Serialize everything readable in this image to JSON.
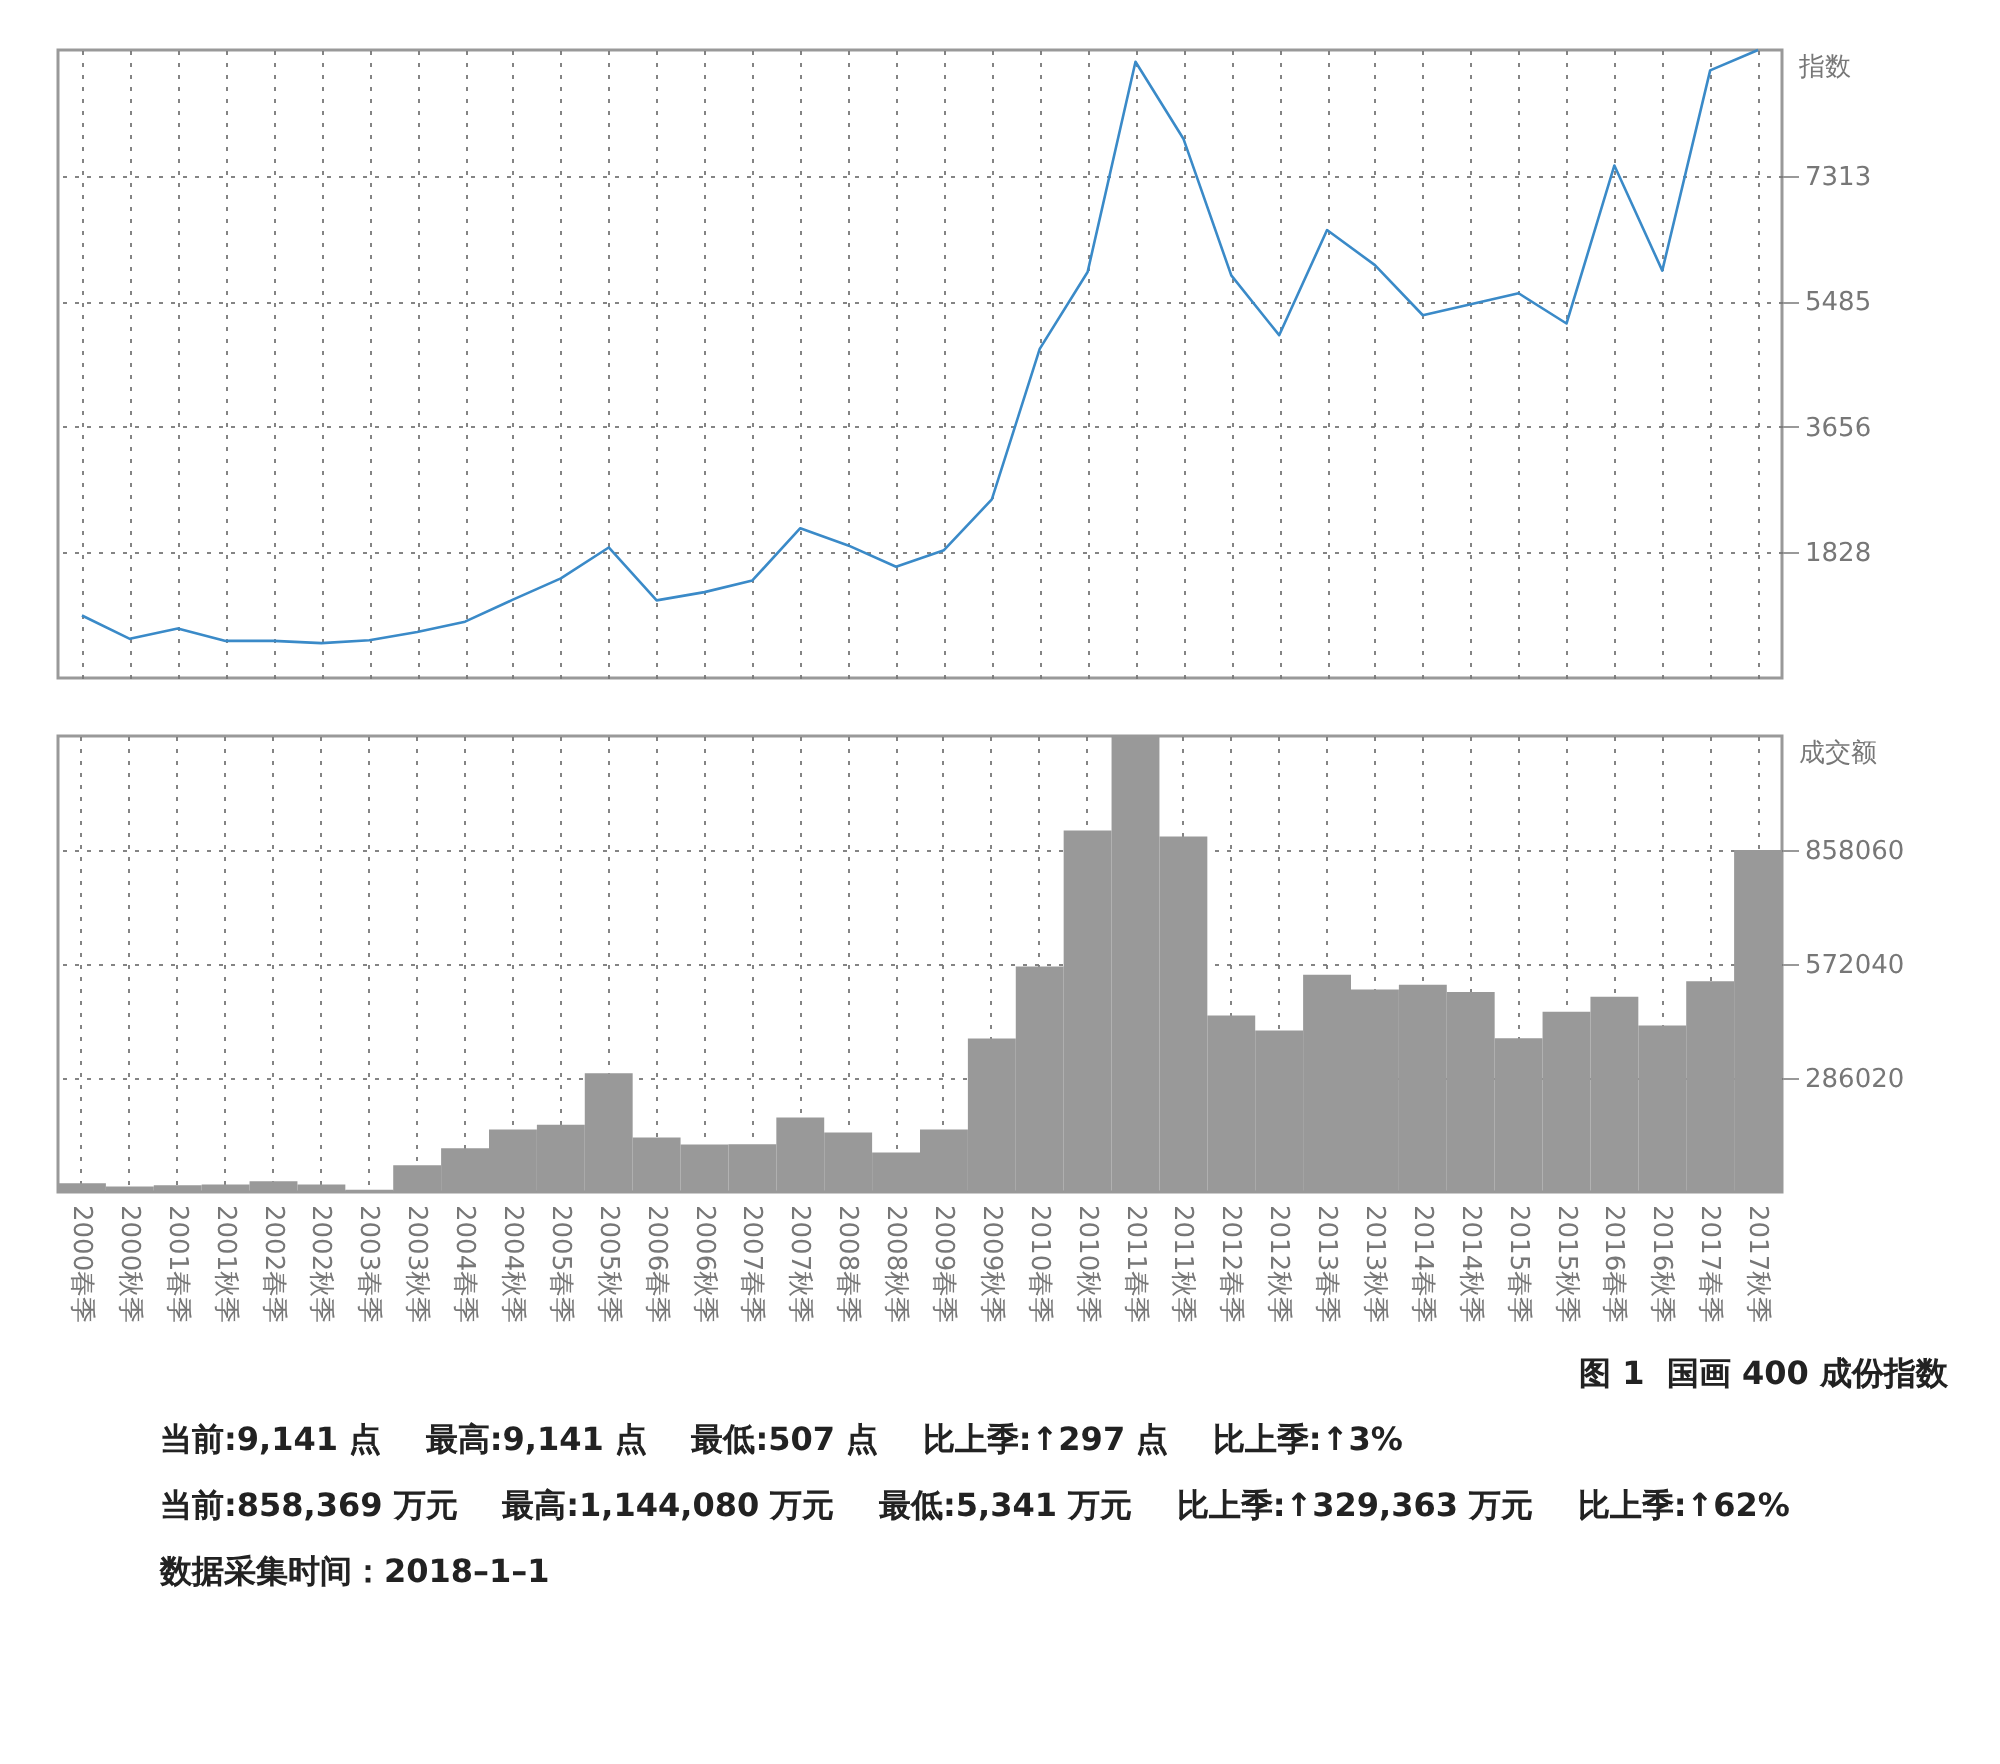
{
  "chart_data": [
    {
      "type": "line",
      "categories": [
        null,
        null,
        null,
        null,
        null,
        null,
        null,
        null,
        null,
        null,
        null,
        null,
        null,
        null,
        null,
        null,
        null,
        null,
        null,
        null,
        null,
        null,
        null,
        null,
        null,
        null,
        null,
        null,
        null,
        null,
        null,
        null,
        null,
        null,
        null,
        null
      ],
      "values": [
        910,
        570,
        720,
        540,
        540,
        507,
        550,
        670,
        820,
        1140,
        1450,
        1900,
        1130,
        1250,
        1420,
        2180,
        1930,
        1620,
        1860,
        2600,
        4790,
        5910,
        8970,
        7850,
        5860,
        4990,
        6520,
        6010,
        5280,
        5440,
        5600,
        5160,
        7460,
        5930,
        8844,
        9141
      ],
      "color": "#3a8ac8",
      "ylabel": "指数",
      "ylim": [
        0,
        9141
      ],
      "yticks": [
        1828,
        3656,
        5485,
        7313
      ],
      "grid": true,
      "tick_labels": "y"
    },
    {
      "type": "bar",
      "categories": [
        "2000春季",
        "2000秋季",
        "2001春季",
        "2001秋季",
        "2002春季",
        "2002秋季",
        "2003春季",
        "2003秋季",
        "2004春季",
        "2004秋季",
        "2005春季",
        "2005秋季",
        "2006春季",
        "2006秋季",
        "2007春季",
        "2007秋季",
        "2008春季",
        "2008秋季",
        "2009春季",
        "2009秋季",
        "2010春季",
        "2010秋季",
        "2011春季",
        "2011秋季",
        "2012春季",
        "2012秋季",
        "2013春季",
        "2013秋季",
        "2014春季",
        "2014秋季",
        "2015春季",
        "2015秋季",
        "2016春季",
        "2016秋季",
        "2017春季",
        "2017秋季"
      ],
      "values": [
        22000,
        14000,
        17000,
        19000,
        27000,
        19000,
        5341,
        67000,
        110000,
        157000,
        169000,
        298000,
        137000,
        119000,
        120000,
        187000,
        149000,
        99000,
        157000,
        385000,
        566000,
        907000,
        1144080,
        892000,
        443000,
        405000,
        545000,
        508000,
        520000,
        502000,
        386000,
        452000,
        490000,
        418000,
        529006,
        858369
      ],
      "color": "#999999",
      "ylabel": "成交额",
      "ylim": [
        0,
        1144080
      ],
      "yticks": [
        286020,
        572040,
        858060
      ],
      "grid": true,
      "title": "图 1  国画 400 成份指数",
      "annotations": [
        "当前:9,141 点    最高:9,141 点    最低:507 点    比上季:↑297 点    比上季:↑3%",
        "当前:858,369 万元    最高:1,144,080 万元    最低:5,341 万元    比上季:↑329,363 万元    比上季:↑62%",
        "数据采集时间：2018–1–1"
      ]
    }
  ]
}
